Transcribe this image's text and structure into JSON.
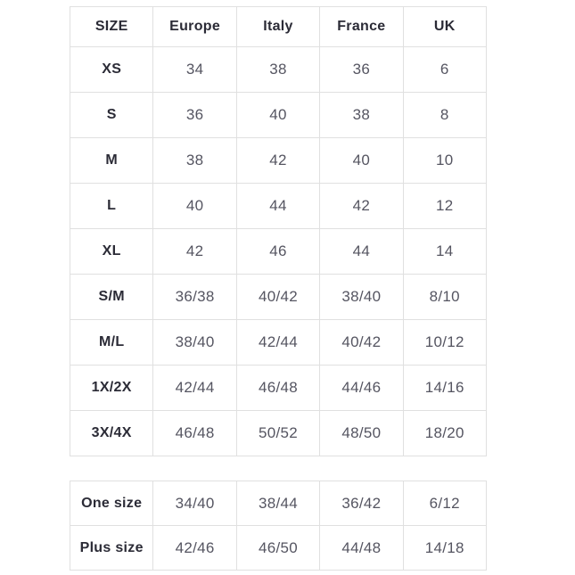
{
  "colors": {
    "background": "#ffffff",
    "header_text": "#2b2b36",
    "cell_text": "#555561",
    "border": "#e0e0e0"
  },
  "size_table": {
    "columns": [
      "SIZE",
      "Europe",
      "Italy",
      "France",
      "UK"
    ],
    "rows": [
      {
        "size": "XS",
        "values": [
          "34",
          "38",
          "36",
          "6"
        ]
      },
      {
        "size": "S",
        "values": [
          "36",
          "40",
          "38",
          "8"
        ]
      },
      {
        "size": "M",
        "values": [
          "38",
          "42",
          "40",
          "10"
        ]
      },
      {
        "size": "L",
        "values": [
          "40",
          "44",
          "42",
          "12"
        ]
      },
      {
        "size": "XL",
        "values": [
          "42",
          "46",
          "44",
          "14"
        ]
      },
      {
        "size": "S/M",
        "values": [
          "36/38",
          "40/42",
          "38/40",
          "8/10"
        ]
      },
      {
        "size": "M/L",
        "values": [
          "38/40",
          "42/44",
          "40/42",
          "10/12"
        ]
      },
      {
        "size": "1X/2X",
        "values": [
          "42/44",
          "46/48",
          "44/46",
          "14/16"
        ]
      },
      {
        "size": "3X/4X",
        "values": [
          "46/48",
          "50/52",
          "48/50",
          "18/20"
        ]
      }
    ]
  },
  "special_size_table": {
    "rows": [
      {
        "size": "One size",
        "values": [
          "34/40",
          "38/44",
          "36/42",
          "6/12"
        ]
      },
      {
        "size": "Plus size",
        "values": [
          "42/46",
          "46/50",
          "44/48",
          "14/18"
        ]
      }
    ]
  }
}
